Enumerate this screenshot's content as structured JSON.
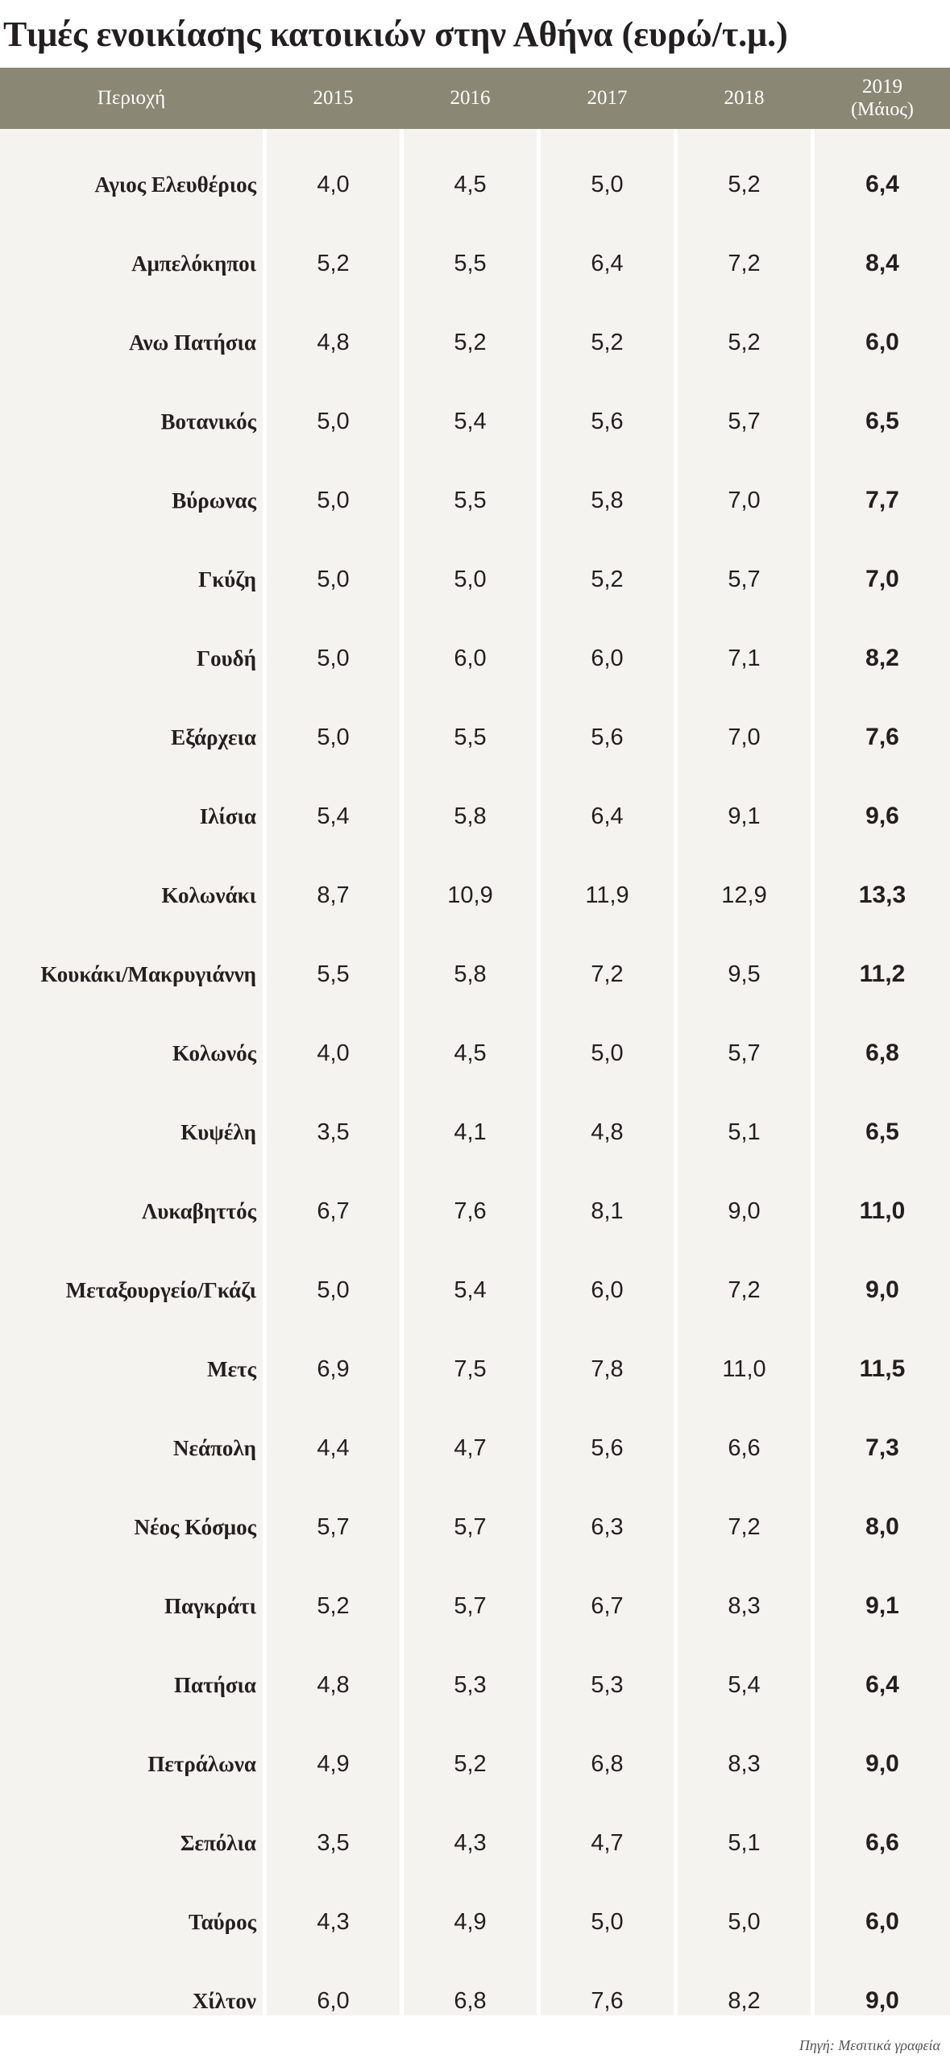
{
  "title": "Τιμές ενοικίασης κατοικιών στην Αθήνα (ευρώ/τ.μ.)",
  "source": "Πηγή: Μεσιτικά γραφεία",
  "colors": {
    "header_bg": "#8b8775",
    "header_text": "#ffffff",
    "cell_bg": "#f4f3ef",
    "text": "#231f20"
  },
  "chart_data": {
    "type": "table",
    "columns": [
      {
        "label": "Περιοχή",
        "sub": ""
      },
      {
        "label": "2015",
        "sub": ""
      },
      {
        "label": "2016",
        "sub": ""
      },
      {
        "label": "2017",
        "sub": ""
      },
      {
        "label": "2018",
        "sub": ""
      },
      {
        "label": "2019",
        "sub": "(Μάιος)"
      }
    ],
    "rows": [
      {
        "area": "Αγιος Ελευθέριος",
        "values": [
          "4,0",
          "4,5",
          "5,0",
          "5,2",
          "6,4"
        ]
      },
      {
        "area": "Αμπελόκηποι",
        "values": [
          "5,2",
          "5,5",
          "6,4",
          "7,2",
          "8,4"
        ]
      },
      {
        "area": "Ανω Πατήσια",
        "values": [
          "4,8",
          "5,2",
          "5,2",
          "5,2",
          "6,0"
        ]
      },
      {
        "area": "Βοτανικός",
        "values": [
          "5,0",
          "5,4",
          "5,6",
          "5,7",
          "6,5"
        ]
      },
      {
        "area": "Βύρωνας",
        "values": [
          "5,0",
          "5,5",
          "5,8",
          "7,0",
          "7,7"
        ]
      },
      {
        "area": "Γκύζη",
        "values": [
          "5,0",
          "5,0",
          "5,2",
          "5,7",
          "7,0"
        ]
      },
      {
        "area": "Γουδή",
        "values": [
          "5,0",
          "6,0",
          "6,0",
          "7,1",
          "8,2"
        ]
      },
      {
        "area": "Εξάρχεια",
        "values": [
          "5,0",
          "5,5",
          "5,6",
          "7,0",
          "7,6"
        ]
      },
      {
        "area": "Ιλίσια",
        "values": [
          "5,4",
          "5,8",
          "6,4",
          "9,1",
          "9,6"
        ]
      },
      {
        "area": "Κολωνάκι",
        "values": [
          "8,7",
          "10,9",
          "11,9",
          "12,9",
          "13,3"
        ]
      },
      {
        "area": "Κουκάκι/Μακρυγιάννη",
        "values": [
          "5,5",
          "5,8",
          "7,2",
          "9,5",
          "11,2"
        ]
      },
      {
        "area": "Κολωνός",
        "values": [
          "4,0",
          "4,5",
          "5,0",
          "5,7",
          "6,8"
        ]
      },
      {
        "area": "Κυψέλη",
        "values": [
          "3,5",
          "4,1",
          "4,8",
          "5,1",
          "6,5"
        ]
      },
      {
        "area": "Λυκαβηττός",
        "values": [
          "6,7",
          "7,6",
          "8,1",
          "9,0",
          "11,0"
        ]
      },
      {
        "area": "Μεταξουργείο/Γκάζι",
        "values": [
          "5,0",
          "5,4",
          "6,0",
          "7,2",
          "9,0"
        ]
      },
      {
        "area": "Μετς",
        "values": [
          "6,9",
          "7,5",
          "7,8",
          "11,0",
          "11,5"
        ]
      },
      {
        "area": "Νεάπολη",
        "values": [
          "4,4",
          "4,7",
          "5,6",
          "6,6",
          "7,3"
        ]
      },
      {
        "area": "Νέος Κόσμος",
        "values": [
          "5,7",
          "5,7",
          "6,3",
          "7,2",
          "8,0"
        ]
      },
      {
        "area": "Παγκράτι",
        "values": [
          "5,2",
          "5,7",
          "6,7",
          "8,3",
          "9,1"
        ]
      },
      {
        "area": "Πατήσια",
        "values": [
          "4,8",
          "5,3",
          "5,3",
          "5,4",
          "6,4"
        ]
      },
      {
        "area": "Πετράλωνα",
        "values": [
          "4,9",
          "5,2",
          "6,8",
          "8,3",
          "9,0"
        ]
      },
      {
        "area": "Σεπόλια",
        "values": [
          "3,5",
          "4,3",
          "4,7",
          "5,1",
          "6,6"
        ]
      },
      {
        "area": "Ταύρος",
        "values": [
          "4,3",
          "4,9",
          "5,0",
          "5,0",
          "6,0"
        ]
      },
      {
        "area": "Χίλτον",
        "values": [
          "6,0",
          "6,8",
          "7,6",
          "8,2",
          "9,0"
        ]
      }
    ]
  }
}
